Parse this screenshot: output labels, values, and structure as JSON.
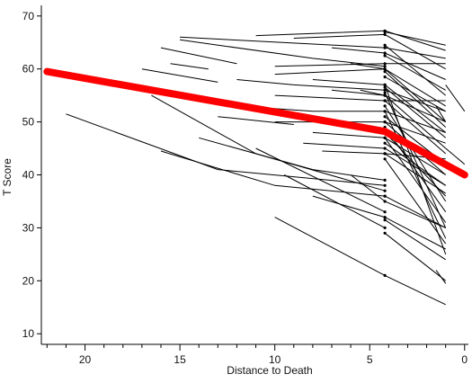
{
  "chart_data": {
    "type": "line",
    "xlabel": "Distance to Death",
    "ylabel": "T Score",
    "xlim": [
      22.3,
      -0.2
    ],
    "ylim": [
      8,
      72
    ],
    "x_reversed": true,
    "x_ticks": [
      20,
      15,
      10,
      5,
      0
    ],
    "y_ticks": [
      10,
      20,
      30,
      40,
      50,
      60,
      70
    ],
    "grid": false,
    "mean_trajectory": {
      "color": "#ff0000",
      "points": [
        [
          22,
          59.5
        ],
        [
          4.2,
          48.2
        ],
        [
          0,
          40.0
        ]
      ]
    },
    "individual_color": "#000000",
    "individual_trajectories": [
      [
        [
          15,
          66
        ],
        [
          4.2,
          64
        ],
        [
          1,
          62
        ]
      ],
      [
        [
          15,
          65.5
        ],
        [
          8,
          62
        ],
        [
          4.2,
          60.5
        ]
      ],
      [
        [
          11,
          66.3
        ],
        [
          4.2,
          67.2
        ],
        [
          1,
          63.5
        ]
      ],
      [
        [
          9,
          65.8
        ],
        [
          4.2,
          66.5
        ],
        [
          1,
          60
        ]
      ],
      [
        [
          4.2,
          67
        ],
        [
          1,
          64.5
        ]
      ],
      [
        [
          4.2,
          64.5
        ],
        [
          1,
          55
        ]
      ],
      [
        [
          7,
          64
        ],
        [
          4.2,
          63
        ],
        [
          1,
          58
        ]
      ],
      [
        [
          16,
          64
        ],
        [
          12,
          61
        ]
      ],
      [
        [
          17,
          60
        ],
        [
          13,
          57.5
        ]
      ],
      [
        [
          15.5,
          61
        ],
        [
          13.5,
          60
        ]
      ],
      [
        [
          10,
          60.5
        ],
        [
          4.2,
          61
        ],
        [
          1,
          61
        ]
      ],
      [
        [
          10,
          59
        ],
        [
          4.2,
          60
        ],
        [
          1,
          50
        ]
      ],
      [
        [
          8,
          58
        ],
        [
          4.2,
          57
        ],
        [
          1,
          48
        ]
      ],
      [
        [
          12,
          58
        ],
        [
          9,
          57
        ]
      ],
      [
        [
          6,
          61
        ],
        [
          4.2,
          60
        ],
        [
          1,
          53
        ]
      ],
      [
        [
          9,
          57
        ],
        [
          4.2,
          56
        ],
        [
          1,
          52
        ]
      ],
      [
        [
          7,
          56
        ],
        [
          4.2,
          55
        ],
        [
          1,
          45
        ]
      ],
      [
        [
          10,
          55
        ],
        [
          4.2,
          54
        ],
        [
          1,
          54
        ]
      ],
      [
        [
          5.5,
          56
        ],
        [
          4.2,
          55
        ],
        [
          1,
          50
        ]
      ],
      [
        [
          14,
          54
        ],
        [
          11,
          52
        ]
      ],
      [
        [
          13,
          51
        ],
        [
          9,
          49.5
        ]
      ],
      [
        [
          12,
          53
        ],
        [
          8,
          52
        ],
        [
          4.2,
          52
        ],
        [
          1,
          48
        ]
      ],
      [
        [
          10,
          50
        ],
        [
          4.2,
          50
        ],
        [
          1,
          46
        ]
      ],
      [
        [
          8,
          48
        ],
        [
          4.2,
          47
        ],
        [
          1,
          40
        ]
      ],
      [
        [
          8.5,
          46
        ],
        [
          4.2,
          45
        ],
        [
          1,
          38
        ]
      ],
      [
        [
          7.5,
          44.5
        ],
        [
          4.2,
          44
        ],
        [
          1,
          43
        ]
      ],
      [
        [
          21,
          51.5
        ],
        [
          13,
          41
        ],
        [
          4.2,
          38
        ]
      ],
      [
        [
          16.5,
          55
        ],
        [
          11,
          44
        ],
        [
          4.2,
          37
        ]
      ],
      [
        [
          16,
          44.5
        ],
        [
          10,
          38
        ],
        [
          4.2,
          36
        ]
      ],
      [
        [
          14,
          47
        ],
        [
          8,
          41
        ],
        [
          4.2,
          39
        ]
      ],
      [
        [
          11,
          45
        ],
        [
          4.2,
          33
        ]
      ],
      [
        [
          9.5,
          40
        ],
        [
          4.2,
          30
        ]
      ],
      [
        [
          10,
          32
        ],
        [
          4.2,
          21
        ],
        [
          1,
          15.5
        ]
      ],
      [
        [
          8,
          36
        ],
        [
          4.2,
          32
        ],
        [
          1,
          26
        ]
      ],
      [
        [
          6,
          40
        ],
        [
          4.2,
          35
        ],
        [
          1,
          30
        ]
      ],
      [
        [
          4.2,
          57
        ],
        [
          1,
          25
        ]
      ],
      [
        [
          4.2,
          53
        ],
        [
          1,
          35
        ]
      ],
      [
        [
          4.2,
          52
        ],
        [
          1,
          28
        ]
      ],
      [
        [
          4.2,
          49
        ],
        [
          1,
          33
        ]
      ],
      [
        [
          4.2,
          46
        ],
        [
          1,
          38
        ]
      ],
      [
        [
          4.2,
          54
        ],
        [
          1,
          44
        ]
      ],
      [
        [
          4.2,
          55.5
        ],
        [
          1,
          30
        ]
      ],
      [
        [
          4.2,
          51
        ],
        [
          1,
          42
        ]
      ],
      [
        [
          4.2,
          48
        ],
        [
          1,
          36
        ]
      ],
      [
        [
          4.2,
          43
        ],
        [
          1,
          27
        ]
      ],
      [
        [
          4.2,
          56.5
        ],
        [
          1,
          47
        ]
      ],
      [
        [
          4.2,
          58.5
        ],
        [
          1,
          52
        ]
      ],
      [
        [
          4.2,
          59.5
        ],
        [
          1,
          49
        ]
      ],
      [
        [
          4.2,
          62.5
        ],
        [
          1,
          56
        ]
      ],
      [
        [
          4.2,
          50
        ],
        [
          1,
          40
        ]
      ],
      [
        [
          4.2,
          47
        ],
        [
          1,
          31
        ]
      ],
      [
        [
          4.2,
          44
        ],
        [
          1,
          36.5
        ]
      ],
      [
        [
          4.2,
          29
        ],
        [
          1,
          20
        ]
      ],
      [
        [
          4.2,
          31.5
        ],
        [
          1,
          24
        ]
      ],
      [
        [
          4.2,
          36
        ],
        [
          1,
          30
        ]
      ],
      [
        [
          1.5,
          53
        ],
        [
          1,
          50
        ]
      ],
      [
        [
          1.5,
          22
        ],
        [
          1,
          19.5
        ]
      ],
      [
        [
          1,
          57
        ],
        [
          0,
          52
        ]
      ],
      [
        [
          1,
          45
        ],
        [
          0,
          42
        ]
      ]
    ]
  }
}
